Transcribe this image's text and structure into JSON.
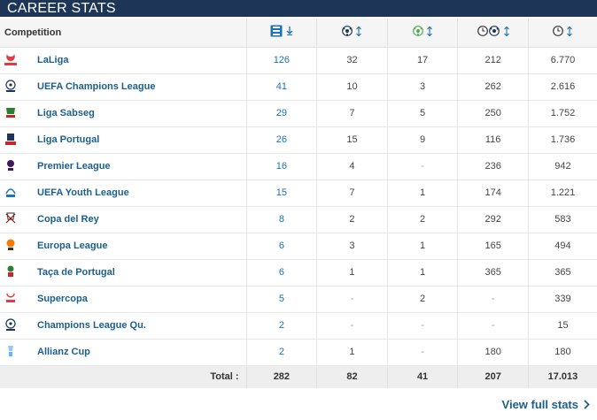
{
  "header": {
    "title": "CAREER STATS"
  },
  "table": {
    "columns": [
      {
        "label": "Competition",
        "icon": "competition-header"
      },
      {
        "label": "",
        "icon": "appearances-icon"
      },
      {
        "label": "",
        "icon": "goals-icon"
      },
      {
        "label": "",
        "icon": "assists-icon"
      },
      {
        "label": "",
        "icon": "minutes-per-goal-icon"
      },
      {
        "label": "",
        "icon": "minutes-played-icon"
      }
    ],
    "rows": [
      {
        "competition": "LaLiga",
        "logo": "laliga-logo",
        "apps": "126",
        "goals": "32",
        "assists": "17",
        "mpg": "212",
        "minutes": "6.770"
      },
      {
        "competition": "UEFA Champions League",
        "logo": "ucl-logo",
        "apps": "41",
        "goals": "10",
        "assists": "3",
        "mpg": "262",
        "minutes": "2.616"
      },
      {
        "competition": "Liga Sabseg",
        "logo": "liga-sabseg-logo",
        "apps": "29",
        "goals": "7",
        "assists": "5",
        "mpg": "250",
        "minutes": "1.752"
      },
      {
        "competition": "Liga Portugal",
        "logo": "liga-portugal-logo",
        "apps": "26",
        "goals": "15",
        "assists": "9",
        "mpg": "116",
        "minutes": "1.736"
      },
      {
        "competition": "Premier League",
        "logo": "premier-league-logo",
        "apps": "16",
        "goals": "4",
        "assists": "-",
        "mpg": "236",
        "minutes": "942"
      },
      {
        "competition": "UEFA Youth League",
        "logo": "uefa-youth-logo",
        "apps": "15",
        "goals": "7",
        "assists": "1",
        "mpg": "174",
        "minutes": "1.221"
      },
      {
        "competition": "Copa del Rey",
        "logo": "copa-del-rey-logo",
        "apps": "8",
        "goals": "2",
        "assists": "2",
        "mpg": "292",
        "minutes": "583"
      },
      {
        "competition": "Europa League",
        "logo": "europa-league-logo",
        "apps": "6",
        "goals": "3",
        "assists": "1",
        "mpg": "165",
        "minutes": "494"
      },
      {
        "competition": "Taça de Portugal",
        "logo": "taca-portugal-logo",
        "apps": "6",
        "goals": "1",
        "assists": "1",
        "mpg": "365",
        "minutes": "365"
      },
      {
        "competition": "Supercopa",
        "logo": "supercopa-logo",
        "apps": "5",
        "goals": "-",
        "assists": "2",
        "mpg": "-",
        "minutes": "339"
      },
      {
        "competition": "Champions League Qu.",
        "logo": "ucl-qualifying-logo",
        "apps": "2",
        "goals": "-",
        "assists": "-",
        "mpg": "-",
        "minutes": "15"
      },
      {
        "competition": "Allianz Cup",
        "logo": "allianz-cup-logo",
        "apps": "2",
        "goals": "1",
        "assists": "-",
        "mpg": "180",
        "minutes": "180"
      }
    ],
    "totals": {
      "label": "Total :",
      "apps": "282",
      "goals": "82",
      "assists": "41",
      "mpg": "207",
      "minutes": "17.013"
    }
  },
  "footer": {
    "view_full_label": "View full stats"
  },
  "colors": {
    "header_bg": "#1d3557",
    "link": "#1a5f8e",
    "apps_link": "#1a73b5"
  }
}
